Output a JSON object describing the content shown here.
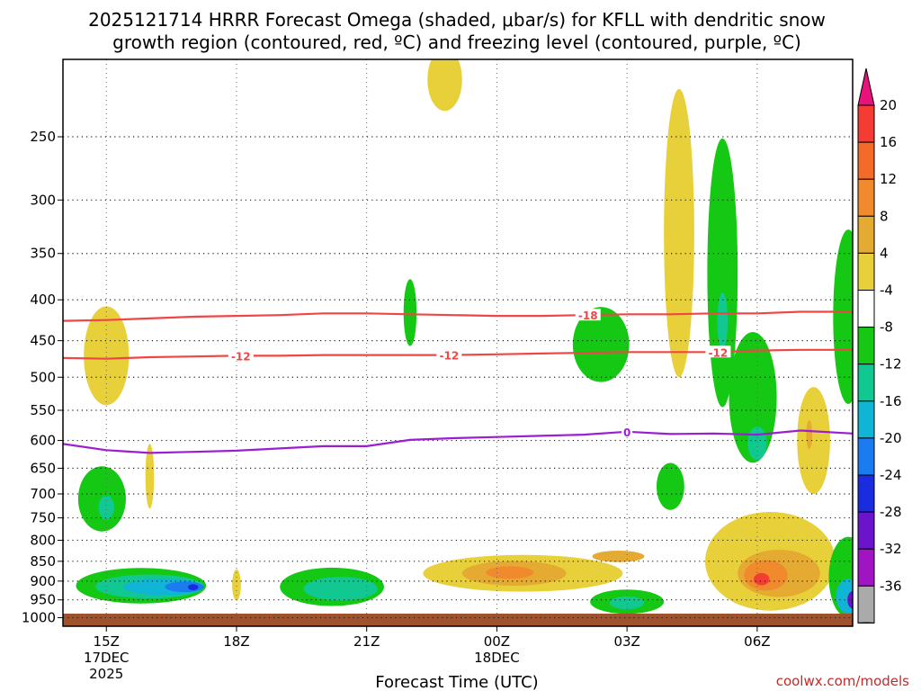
{
  "chart_data": {
    "type": "contour-time-height",
    "title_line1": "2025121714 HRRR Forecast Omega (shaded, μbar/s) for KFLL with dendritic snow",
    "title_line2": "growth region (contoured, red, ºC) and freezing level (contoured, purple, ºC)",
    "xlabel": "Forecast Time (UTC)",
    "x_ticks": [
      {
        "hour": 15,
        "label": "15Z",
        "sub1": "17DEC",
        "sub2": "2025"
      },
      {
        "hour": 18,
        "label": "18Z",
        "sub1": "",
        "sub2": ""
      },
      {
        "hour": 21,
        "label": "21Z",
        "sub1": "",
        "sub2": ""
      },
      {
        "hour": 24,
        "label": "00Z",
        "sub1": "18DEC",
        "sub2": ""
      },
      {
        "hour": 27,
        "label": "03Z",
        "sub1": "",
        "sub2": ""
      },
      {
        "hour": 30,
        "label": "06Z",
        "sub1": "",
        "sub2": ""
      }
    ],
    "x_range_hours": [
      14,
      32.2
    ],
    "y_ticks": [
      250,
      300,
      350,
      400,
      450,
      500,
      550,
      600,
      650,
      700,
      750,
      800,
      850,
      900,
      950,
      1000
    ],
    "y_range_hpa": [
      200,
      1025
    ],
    "colorbar": {
      "unit": "μbar/s",
      "labels": [
        "20",
        "16",
        "12",
        "8",
        "4",
        "-4",
        "-8",
        "-12",
        "-16",
        "-20",
        "-24",
        "-28",
        "-32",
        "-36"
      ],
      "colors": [
        "#e8127a",
        "#f43c34",
        "#f46a28",
        "#f08a2c",
        "#e4aa32",
        "#e8d03a",
        "#ffffff",
        "#14c814",
        "#10c890",
        "#10b4d4",
        "#1a7cf0",
        "#1a2ce0",
        "#6a14cc",
        "#a014c4",
        "#aaaaaa",
        "#000000"
      ]
    },
    "contours": [
      {
        "name": "dendritic-upper",
        "label": "-18",
        "unit": "ºC",
        "color": "#f04646",
        "points": [
          [
            14,
            425
          ],
          [
            15,
            424
          ],
          [
            16,
            422
          ],
          [
            17,
            420
          ],
          [
            18,
            419
          ],
          [
            19,
            418
          ],
          [
            20,
            416
          ],
          [
            21,
            416
          ],
          [
            22,
            417
          ],
          [
            23,
            418
          ],
          [
            24,
            419
          ],
          [
            25,
            419
          ],
          [
            26,
            418
          ],
          [
            27,
            417
          ],
          [
            28,
            417
          ],
          [
            29,
            416
          ],
          [
            30,
            416
          ],
          [
            31,
            414
          ],
          [
            32.2,
            414
          ]
        ]
      },
      {
        "name": "dendritic-lower",
        "label": "-12",
        "unit": "ºC",
        "color": "#f04646",
        "points": [
          [
            14,
            473
          ],
          [
            15,
            474
          ],
          [
            16,
            472
          ],
          [
            17,
            471
          ],
          [
            18,
            470
          ],
          [
            19,
            470
          ],
          [
            20,
            469
          ],
          [
            21,
            469
          ],
          [
            22,
            469
          ],
          [
            23,
            469
          ],
          [
            24,
            468
          ],
          [
            25,
            467
          ],
          [
            26,
            466
          ],
          [
            27,
            465
          ],
          [
            28,
            465
          ],
          [
            29,
            465
          ],
          [
            30,
            463
          ],
          [
            31,
            462
          ],
          [
            32.2,
            462
          ]
        ]
      },
      {
        "name": "freezing-level",
        "label": "0",
        "unit": "ºC",
        "color": "#9b1fd0",
        "points": [
          [
            14,
            606
          ],
          [
            15,
            617
          ],
          [
            16,
            622
          ],
          [
            17,
            620
          ],
          [
            18,
            618
          ],
          [
            19,
            614
          ],
          [
            20,
            610
          ],
          [
            21,
            610
          ],
          [
            22,
            599
          ],
          [
            23,
            596
          ],
          [
            24,
            594
          ],
          [
            25,
            592
          ],
          [
            26,
            590
          ],
          [
            27,
            585
          ],
          [
            28,
            589
          ],
          [
            29,
            588
          ],
          [
            30,
            590
          ],
          [
            31,
            583
          ],
          [
            32.2,
            588
          ]
        ]
      }
    ],
    "contour_labels": [
      {
        "text": "-18",
        "hour": 26.1,
        "p": 418,
        "color": "#f04646"
      },
      {
        "text": "-12",
        "hour": 18.1,
        "p": 470,
        "color": "#f04646"
      },
      {
        "text": "-12",
        "hour": 22.9,
        "p": 469,
        "color": "#f04646"
      },
      {
        "text": "-12",
        "hour": 29.1,
        "p": 465,
        "color": "#f04646"
      },
      {
        "text": "0",
        "hour": 27.0,
        "p": 585,
        "color": "#9b1fd0"
      }
    ],
    "omega_regions": [
      {
        "name": "ascent-1530z-low",
        "level": "-4",
        "color": "#14c814",
        "hour": 15.8,
        "p": 912,
        "rh": 1.5,
        "rp": 48
      },
      {
        "name": "ascent-1530z-low-inner",
        "level": "-8",
        "color": "#10c890",
        "hour": 16.0,
        "p": 914,
        "rh": 1.25,
        "rp": 32
      },
      {
        "name": "ascent-1530z-low-core",
        "level": "-12",
        "color": "#10b4d4",
        "hour": 16.3,
        "p": 915,
        "rh": 0.9,
        "rp": 22
      },
      {
        "name": "ascent-1530z-low-max",
        "level": "-16",
        "color": "#1a7cf0",
        "hour": 16.8,
        "p": 915,
        "rh": 0.45,
        "rp": 14
      },
      {
        "name": "ascent-1530z-low-peak",
        "level": "-20",
        "color": "#1a2ce0",
        "hour": 17.0,
        "p": 916,
        "rh": 0.12,
        "rp": 8
      },
      {
        "name": "ascent-15z-mid",
        "level": "-4",
        "color": "#14c814",
        "hour": 14.9,
        "p": 710,
        "rh": 0.55,
        "rp": 70
      },
      {
        "name": "ascent-15z-mid-inner",
        "level": "-8",
        "color": "#10c890",
        "hour": 15.0,
        "p": 728,
        "rh": 0.18,
        "rp": 26
      },
      {
        "name": "descent-15z-upper",
        "level": "4",
        "color": "#e8d03a",
        "hour": 15.0,
        "p": 470,
        "rh": 0.52,
        "rp": 72
      },
      {
        "name": "descent-16z-thin",
        "level": "4",
        "color": "#e8d03a",
        "hour": 16.0,
        "p": 665,
        "rh": 0.1,
        "rp": 65
      },
      {
        "name": "descent-18z-thin",
        "level": "4",
        "color": "#e8d03a",
        "hour": 18.0,
        "p": 910,
        "rh": 0.1,
        "rp": 42
      },
      {
        "name": "ascent-20z-low",
        "level": "-4",
        "color": "#14c814",
        "hour": 20.2,
        "p": 915,
        "rh": 1.2,
        "rp": 52
      },
      {
        "name": "ascent-20z-low-inner",
        "level": "-8",
        "color": "#10c890",
        "hour": 20.4,
        "p": 920,
        "rh": 0.85,
        "rp": 32
      },
      {
        "name": "ascent-22z-upper",
        "level": "-4",
        "color": "#14c814",
        "hour": 22.0,
        "p": 415,
        "rh": 0.15,
        "rp": 42
      },
      {
        "name": "descent-2230z-top",
        "level": "4",
        "color": "#e8d03a",
        "hour": 22.8,
        "p": 212,
        "rh": 0.4,
        "rp": 20
      },
      {
        "name": "descent-00z-low",
        "level": "4",
        "color": "#e8d03a",
        "hour": 24.6,
        "p": 880,
        "rh": 2.3,
        "rp": 48
      },
      {
        "name": "descent-00z-low-inner",
        "level": "8",
        "color": "#e4aa32",
        "hour": 24.4,
        "p": 880,
        "rh": 1.2,
        "rp": 32
      },
      {
        "name": "descent-00z-low-core",
        "level": "12",
        "color": "#f08a2c",
        "hour": 24.3,
        "p": 878,
        "rh": 0.55,
        "rp": 16
      },
      {
        "name": "descent-0230z-low",
        "level": "8",
        "color": "#e4aa32",
        "hour": 26.8,
        "p": 838,
        "rh": 0.6,
        "rp": 14
      },
      {
        "name": "ascent-02z-mid",
        "level": "-4",
        "color": "#14c814",
        "hour": 26.4,
        "p": 455,
        "rh": 0.65,
        "rp": 52
      },
      {
        "name": "ascent-03z-low",
        "level": "-4",
        "color": "#14c814",
        "hour": 27.0,
        "p": 955,
        "rh": 0.85,
        "rp": 34
      },
      {
        "name": "ascent-03z-low-inner",
        "level": "-8",
        "color": "#10c890",
        "hour": 27.0,
        "p": 958,
        "rh": 0.4,
        "rp": 18
      },
      {
        "name": "ascent-0330z-mid",
        "level": "-4",
        "color": "#14c814",
        "hour": 28.0,
        "p": 685,
        "rh": 0.32,
        "rp": 48
      },
      {
        "name": "descent-04z-tower",
        "level": "4",
        "color": "#e8d03a",
        "hour": 28.2,
        "p": 330,
        "rh": 0.35,
        "rp": 170
      },
      {
        "name": "ascent-05z-tower",
        "level": "-4",
        "color": "#14c814",
        "hour": 29.2,
        "p": 370,
        "rh": 0.35,
        "rp": 175
      },
      {
        "name": "ascent-05z-slant",
        "level": "-4",
        "color": "#14c814",
        "hour": 29.9,
        "p": 530,
        "rh": 0.55,
        "rp": 110
      },
      {
        "name": "ascent-05z-mid-inner",
        "level": "-8",
        "color": "#10c890",
        "hour": 29.2,
        "p": 425,
        "rh": 0.12,
        "rp": 36
      },
      {
        "name": "ascent-06z-mid-inner",
        "level": "-8",
        "color": "#10c890",
        "hour": 30.0,
        "p": 605,
        "rh": 0.22,
        "rp": 30
      },
      {
        "name": "descent-06z-low",
        "level": "4",
        "color": "#e8d03a",
        "hour": 30.3,
        "p": 850,
        "rh": 1.5,
        "rp": 130
      },
      {
        "name": "descent-06z-low-inner",
        "level": "8",
        "color": "#e4aa32",
        "hour": 30.5,
        "p": 880,
        "rh": 0.95,
        "rp": 62
      },
      {
        "name": "descent-06z-low-core",
        "level": "12",
        "color": "#f08a2c",
        "hour": 30.2,
        "p": 885,
        "rh": 0.5,
        "rp": 40
      },
      {
        "name": "descent-06z-low-max",
        "level": "16",
        "color": "#f43c34",
        "hour": 30.1,
        "p": 895,
        "rh": 0.18,
        "rp": 16
      },
      {
        "name": "descent-07z-mid",
        "level": "4",
        "color": "#e8d03a",
        "hour": 31.3,
        "p": 600,
        "rh": 0.38,
        "rp": 100
      },
      {
        "name": "descent-07z-mid-inner",
        "level": "8",
        "color": "#e4aa32",
        "hour": 31.2,
        "p": 590,
        "rh": 0.07,
        "rp": 25
      },
      {
        "name": "ascent-08z-upper",
        "level": "-4",
        "color": "#14c814",
        "hour": 32.1,
        "p": 420,
        "rh": 0.35,
        "rp": 120
      },
      {
        "name": "ascent-08z-low",
        "level": "-4",
        "color": "#14c814",
        "hour": 32.1,
        "p": 890,
        "rh": 0.45,
        "rp": 110
      },
      {
        "name": "ascent-08z-low-inner",
        "level": "-12",
        "color": "#10b4d4",
        "hour": 32.1,
        "p": 940,
        "rh": 0.28,
        "rp": 48
      },
      {
        "name": "ascent-08z-low-core",
        "level": "-24",
        "color": "#6a14cc",
        "hour": 32.2,
        "p": 950,
        "rh": 0.12,
        "rp": 24
      }
    ]
  },
  "credit": "coolwx.com/models"
}
